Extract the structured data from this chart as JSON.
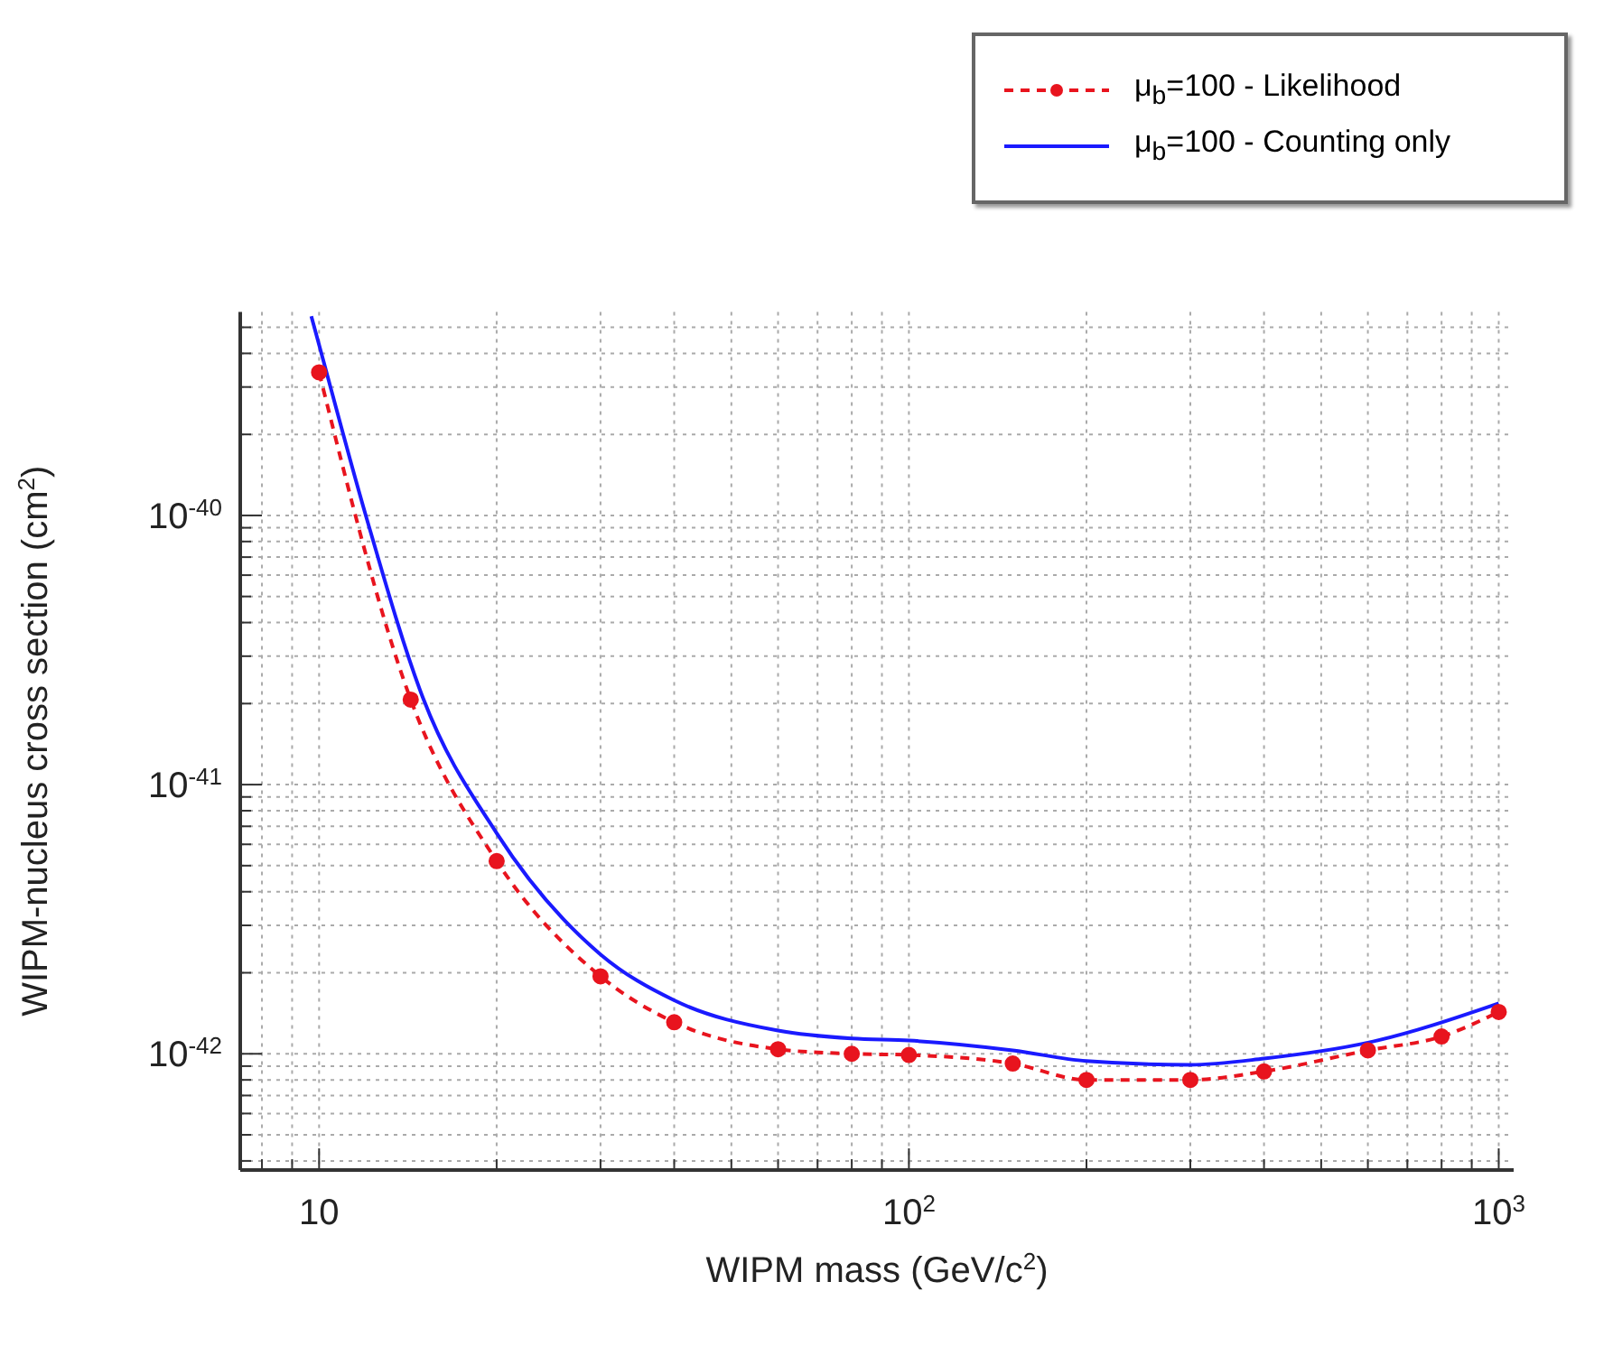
{
  "chart_data": {
    "type": "line",
    "xlabel": "WIPM mass (GeV/c$^{2}$)",
    "ylabel": "WIPM-nucleus cross section (cm$^{2}$)",
    "log": "xy",
    "grid": true,
    "legend": "top right",
    "xlim": [
      7.35,
      1060
    ],
    "xticks": [
      {
        "value": 8,
        "label": null
      },
      {
        "value": 9,
        "label": null
      },
      {
        "value": 10,
        "label": "10"
      },
      {
        "value": 20,
        "label": null
      },
      {
        "value": 30,
        "label": null
      },
      {
        "value": 40,
        "label": null
      },
      {
        "value": 50,
        "label": null
      },
      {
        "value": 60,
        "label": null
      },
      {
        "value": 70,
        "label": null
      },
      {
        "value": 80,
        "label": null
      },
      {
        "value": 90,
        "label": null
      },
      {
        "value": 100,
        "label": "10$^{2}$"
      },
      {
        "value": 200,
        "label": null
      },
      {
        "value": 300,
        "label": null
      },
      {
        "value": 400,
        "label": null
      },
      {
        "value": 500,
        "label": null
      },
      {
        "value": 600,
        "label": null
      },
      {
        "value": 700,
        "label": null
      },
      {
        "value": 800,
        "label": null
      },
      {
        "value": 900,
        "label": null
      },
      {
        "value": 1000,
        "label": "10$^{3}$"
      }
    ],
    "ylim": [
      3.7e-43,
      5.7e-40
    ],
    "yticks": [
      {
        "value": 4e-43,
        "label": null
      },
      {
        "value": 5e-43,
        "label": null
      },
      {
        "value": 6e-43,
        "label": null
      },
      {
        "value": 7e-43,
        "label": null
      },
      {
        "value": 8e-43,
        "label": null
      },
      {
        "value": 9e-43,
        "label": null
      },
      {
        "value": 1e-42,
        "label": "10$^{-42}$"
      },
      {
        "value": 2e-42,
        "label": null
      },
      {
        "value": 3e-42,
        "label": null
      },
      {
        "value": 4e-42,
        "label": null
      },
      {
        "value": 5e-42,
        "label": null
      },
      {
        "value": 6e-42,
        "label": null
      },
      {
        "value": 7e-42,
        "label": null
      },
      {
        "value": 8e-42,
        "label": null
      },
      {
        "value": 9e-42,
        "label": null
      },
      {
        "value": 1e-41,
        "label": "10$^{-41}$"
      },
      {
        "value": 2e-41,
        "label": null
      },
      {
        "value": 3e-41,
        "label": null
      },
      {
        "value": 4e-41,
        "label": null
      },
      {
        "value": 5e-41,
        "label": null
      },
      {
        "value": 6e-41,
        "label": null
      },
      {
        "value": 7e-41,
        "label": null
      },
      {
        "value": 8e-41,
        "label": null
      },
      {
        "value": 9e-41,
        "label": null
      },
      {
        "value": 1e-40,
        "label": "10$^{-40}$"
      },
      {
        "value": 2e-40,
        "label": null
      },
      {
        "value": 3e-40,
        "label": null
      },
      {
        "value": 4e-40,
        "label": null
      },
      {
        "value": 5e-40,
        "label": null
      }
    ],
    "series": [
      {
        "name": "μ$_{b}$=100 - Likelihood",
        "color": "#e8141e",
        "marker": "circle",
        "line_style": "dashed",
        "x": [
          10,
          14.3,
          20,
          30,
          40,
          60,
          80,
          100,
          150,
          200,
          300,
          400,
          600,
          800,
          1000
        ],
        "values": [
          3.4e-40,
          2.07e-41,
          5.2e-42,
          1.94e-42,
          1.31e-42,
          1.04e-42,
          1e-42,
          9.9e-43,
          9.2e-43,
          8e-43,
          8e-43,
          8.6e-43,
          1.03e-42,
          1.16e-42,
          1.43e-42
        ]
      },
      {
        "name": "μ$_{b}$=100 - Counting only",
        "color": "#1a1aff",
        "marker": "none",
        "line_style": "solid",
        "x": [
          9.7,
          10,
          12,
          15,
          20,
          30,
          40,
          60,
          80,
          100,
          150,
          200,
          300,
          400,
          600,
          1000
        ],
        "values": [
          5.5e-40,
          4.3e-40,
          1e-40,
          2.1e-41,
          6.6e-42,
          2.34e-42,
          1.58e-42,
          1.22e-42,
          1.14e-42,
          1.12e-42,
          1.03e-42,
          9.4e-43,
          9.1e-43,
          9.6e-43,
          1.1e-42,
          1.54e-42
        ]
      }
    ]
  }
}
